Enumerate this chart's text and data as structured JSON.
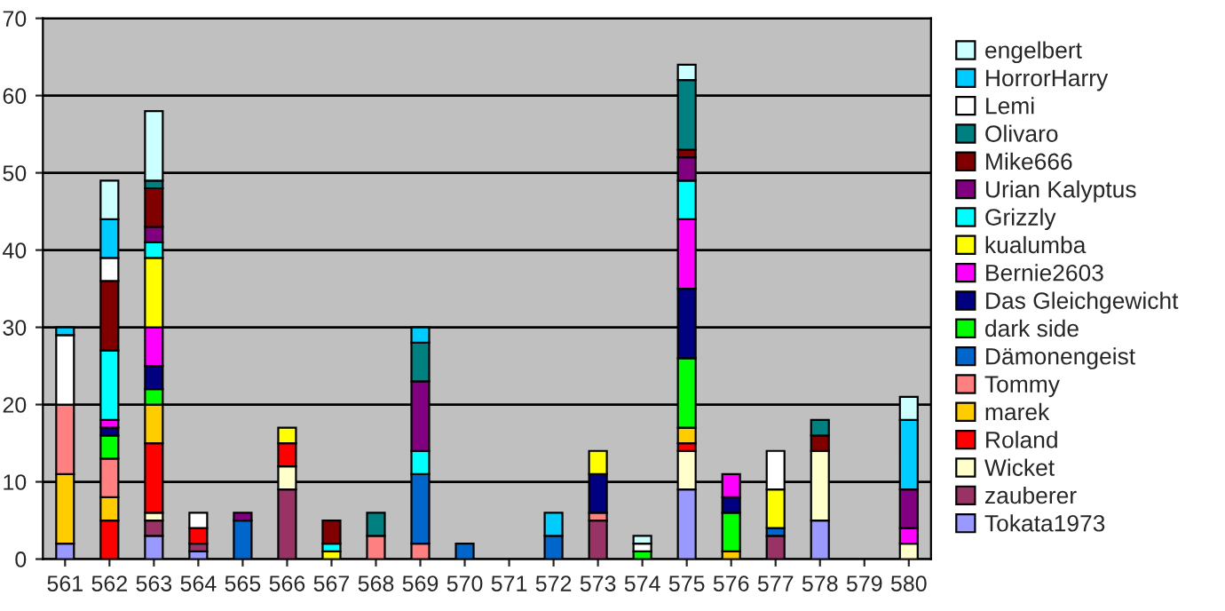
{
  "chart_data": {
    "type": "bar",
    "stacked": true,
    "categories": [
      "561",
      "562",
      "563",
      "564",
      "565",
      "566",
      "567",
      "568",
      "569",
      "570",
      "571",
      "572",
      "573",
      "574",
      "575",
      "576",
      "577",
      "578",
      "579",
      "580"
    ],
    "ylim": [
      0,
      70
    ],
    "yticks": [
      0,
      10,
      20,
      30,
      40,
      50,
      60,
      70
    ],
    "grid": "y",
    "legend": "right",
    "series": [
      {
        "name": "Tokata1973",
        "color": "#9999ff",
        "values": [
          2,
          null,
          3,
          1,
          null,
          null,
          null,
          null,
          null,
          null,
          null,
          null,
          null,
          null,
          9,
          null,
          null,
          5,
          null,
          null
        ]
      },
      {
        "name": "zauberer",
        "color": "#993366",
        "values": [
          null,
          null,
          2,
          1,
          null,
          9,
          null,
          null,
          null,
          null,
          null,
          null,
          5,
          null,
          null,
          null,
          3,
          null,
          null,
          null
        ]
      },
      {
        "name": "Wicket",
        "color": "#ffffcc",
        "values": [
          null,
          null,
          1,
          null,
          null,
          3,
          null,
          null,
          null,
          null,
          null,
          null,
          null,
          null,
          5,
          null,
          null,
          9,
          null,
          2
        ]
      },
      {
        "name": "Roland",
        "color": "#ff0000",
        "values": [
          null,
          5,
          9,
          2,
          null,
          3,
          null,
          null,
          null,
          null,
          null,
          null,
          null,
          null,
          1,
          null,
          null,
          null,
          null,
          null
        ]
      },
      {
        "name": "marek",
        "color": "#ffcc00",
        "values": [
          9,
          3,
          5,
          null,
          null,
          null,
          null,
          null,
          null,
          null,
          null,
          null,
          null,
          null,
          2,
          1,
          null,
          null,
          null,
          null
        ]
      },
      {
        "name": "Tommy",
        "color": "#ff8080",
        "values": [
          9,
          5,
          null,
          null,
          null,
          null,
          null,
          3,
          2,
          null,
          null,
          null,
          1,
          null,
          null,
          null,
          null,
          null,
          null,
          null
        ]
      },
      {
        "name": "Dämonengeist",
        "color": "#0066cc",
        "values": [
          null,
          null,
          null,
          null,
          5,
          null,
          null,
          null,
          9,
          2,
          null,
          3,
          null,
          null,
          null,
          null,
          1,
          null,
          null,
          null
        ]
      },
      {
        "name": "dark side",
        "color": "#00ff00",
        "values": [
          null,
          3,
          2,
          null,
          null,
          null,
          null,
          null,
          null,
          null,
          null,
          null,
          null,
          1,
          9,
          5,
          null,
          null,
          null,
          null
        ]
      },
      {
        "name": "Das Gleichgewicht",
        "color": "#000080",
        "values": [
          null,
          1,
          3,
          null,
          null,
          null,
          null,
          null,
          null,
          null,
          null,
          null,
          5,
          null,
          9,
          2,
          null,
          null,
          null,
          null
        ]
      },
      {
        "name": "Bernie2603",
        "color": "#ff00ff",
        "values": [
          null,
          1,
          5,
          null,
          null,
          null,
          null,
          null,
          null,
          null,
          null,
          null,
          null,
          null,
          9,
          3,
          null,
          null,
          null,
          2
        ]
      },
      {
        "name": "kualumba",
        "color": "#ffff00",
        "values": [
          null,
          null,
          9,
          null,
          null,
          2,
          1,
          null,
          null,
          null,
          null,
          null,
          3,
          null,
          null,
          null,
          5,
          null,
          null,
          null
        ]
      },
      {
        "name": "Grizzly",
        "color": "#00ffff",
        "values": [
          null,
          9,
          2,
          null,
          null,
          null,
          1,
          null,
          3,
          null,
          null,
          null,
          null,
          null,
          5,
          null,
          null,
          null,
          null,
          null
        ]
      },
      {
        "name": "Urian Kalyptus",
        "color": "#800080",
        "values": [
          null,
          null,
          2,
          null,
          1,
          null,
          null,
          null,
          9,
          null,
          null,
          null,
          null,
          null,
          3,
          null,
          null,
          null,
          null,
          5
        ]
      },
      {
        "name": "Mike666",
        "color": "#800000",
        "values": [
          null,
          9,
          5,
          null,
          null,
          null,
          3,
          null,
          null,
          null,
          null,
          null,
          null,
          null,
          1,
          null,
          null,
          2,
          null,
          null
        ]
      },
      {
        "name": "Olivaro",
        "color": "#008080",
        "values": [
          null,
          null,
          1,
          null,
          null,
          null,
          null,
          3,
          5,
          null,
          null,
          null,
          null,
          null,
          9,
          null,
          null,
          2,
          null,
          null
        ]
      },
      {
        "name": "Lemi",
        "color": "#ffffff",
        "values": [
          9,
          3,
          null,
          2,
          null,
          null,
          null,
          null,
          null,
          null,
          null,
          null,
          null,
          1,
          null,
          null,
          5,
          null,
          null,
          null
        ]
      },
      {
        "name": "HorrorHarry",
        "color": "#00ccff",
        "values": [
          1,
          5,
          null,
          null,
          null,
          null,
          null,
          null,
          2,
          null,
          null,
          3,
          null,
          null,
          null,
          null,
          null,
          null,
          null,
          9
        ]
      },
      {
        "name": "engelbert",
        "color": "#ccffff",
        "values": [
          null,
          5,
          9,
          null,
          null,
          null,
          null,
          null,
          null,
          null,
          null,
          null,
          null,
          1,
          2,
          null,
          null,
          null,
          null,
          3
        ]
      }
    ]
  }
}
